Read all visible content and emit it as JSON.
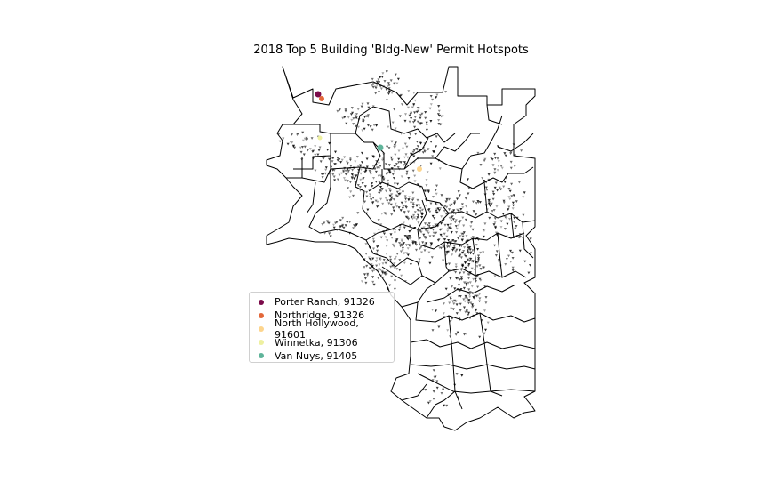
{
  "title": "2018 Top 5 Building 'Bldg-New' Permit Hotspots",
  "legend": {
    "items": [
      {
        "label": "Porter Ranch, 91326",
        "color": "#7b0b4a"
      },
      {
        "label": "Northridge, 91326",
        "color": "#e3683a"
      },
      {
        "label": "North Hollywood, 91601",
        "color": "#fdd58d"
      },
      {
        "label": "Winnetka, 91306",
        "color": "#eef0a0"
      },
      {
        "label": "Van Nuys, 91405",
        "color": "#5fb49a"
      }
    ]
  },
  "colors": {
    "boundary": "#000000",
    "permit_point": "#000000",
    "background": "#ffffff"
  },
  "icons": [
    "permit-marker-triangle",
    "hotspot-circle"
  ]
}
